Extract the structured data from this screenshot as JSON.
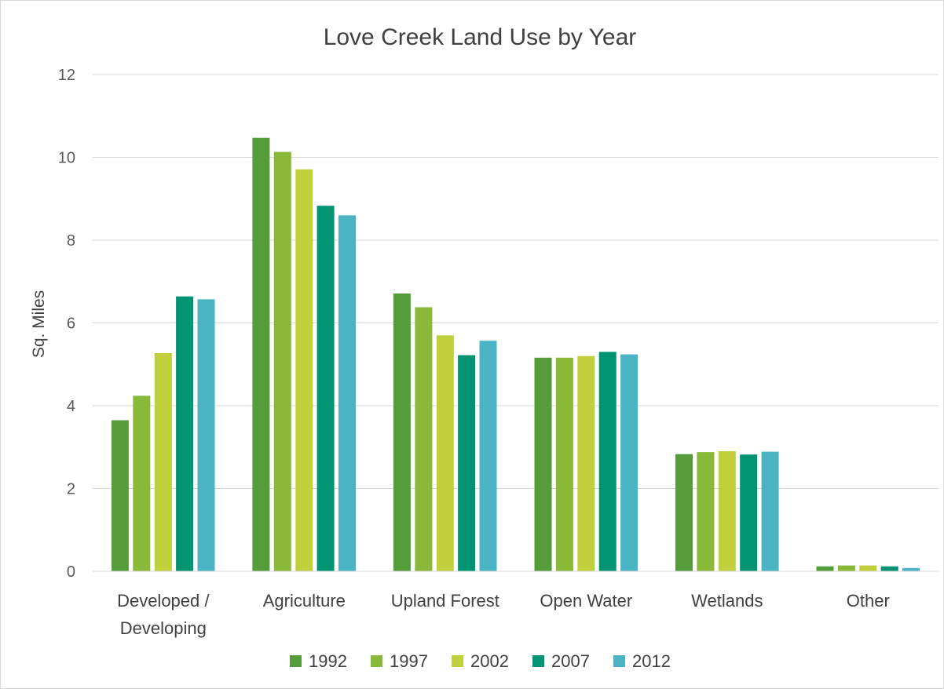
{
  "chart_data": {
    "type": "bar",
    "title": "Love Creek Land Use by Year",
    "xlabel": "",
    "ylabel": "Sq. Miles",
    "ylim": [
      0,
      12
    ],
    "yticks": [
      "0",
      "2",
      "4",
      "6",
      "8",
      "10",
      "12"
    ],
    "grid": true,
    "legend_position": "bottom",
    "categories": [
      [
        "Developed /",
        "Developing"
      ],
      [
        "Agriculture"
      ],
      [
        "Upland Forest"
      ],
      [
        "Open Water"
      ],
      [
        "Wetlands"
      ],
      [
        "Other"
      ]
    ],
    "series": [
      {
        "name": "1992",
        "color": "#559d3b",
        "values": [
          3.65,
          10.47,
          6.71,
          5.16,
          2.83,
          0.12
        ]
      },
      {
        "name": "1997",
        "color": "#8ab838",
        "values": [
          4.24,
          10.13,
          6.38,
          5.16,
          2.88,
          0.14
        ]
      },
      {
        "name": "2002",
        "color": "#c1cf3d",
        "values": [
          5.27,
          9.71,
          5.7,
          5.2,
          2.9,
          0.14
        ]
      },
      {
        "name": "2007",
        "color": "#009473",
        "values": [
          6.64,
          8.83,
          5.22,
          5.3,
          2.82,
          0.12
        ]
      },
      {
        "name": "2012",
        "color": "#4bb4c4",
        "values": [
          6.57,
          8.6,
          5.57,
          5.24,
          2.89,
          0.08
        ]
      }
    ]
  }
}
